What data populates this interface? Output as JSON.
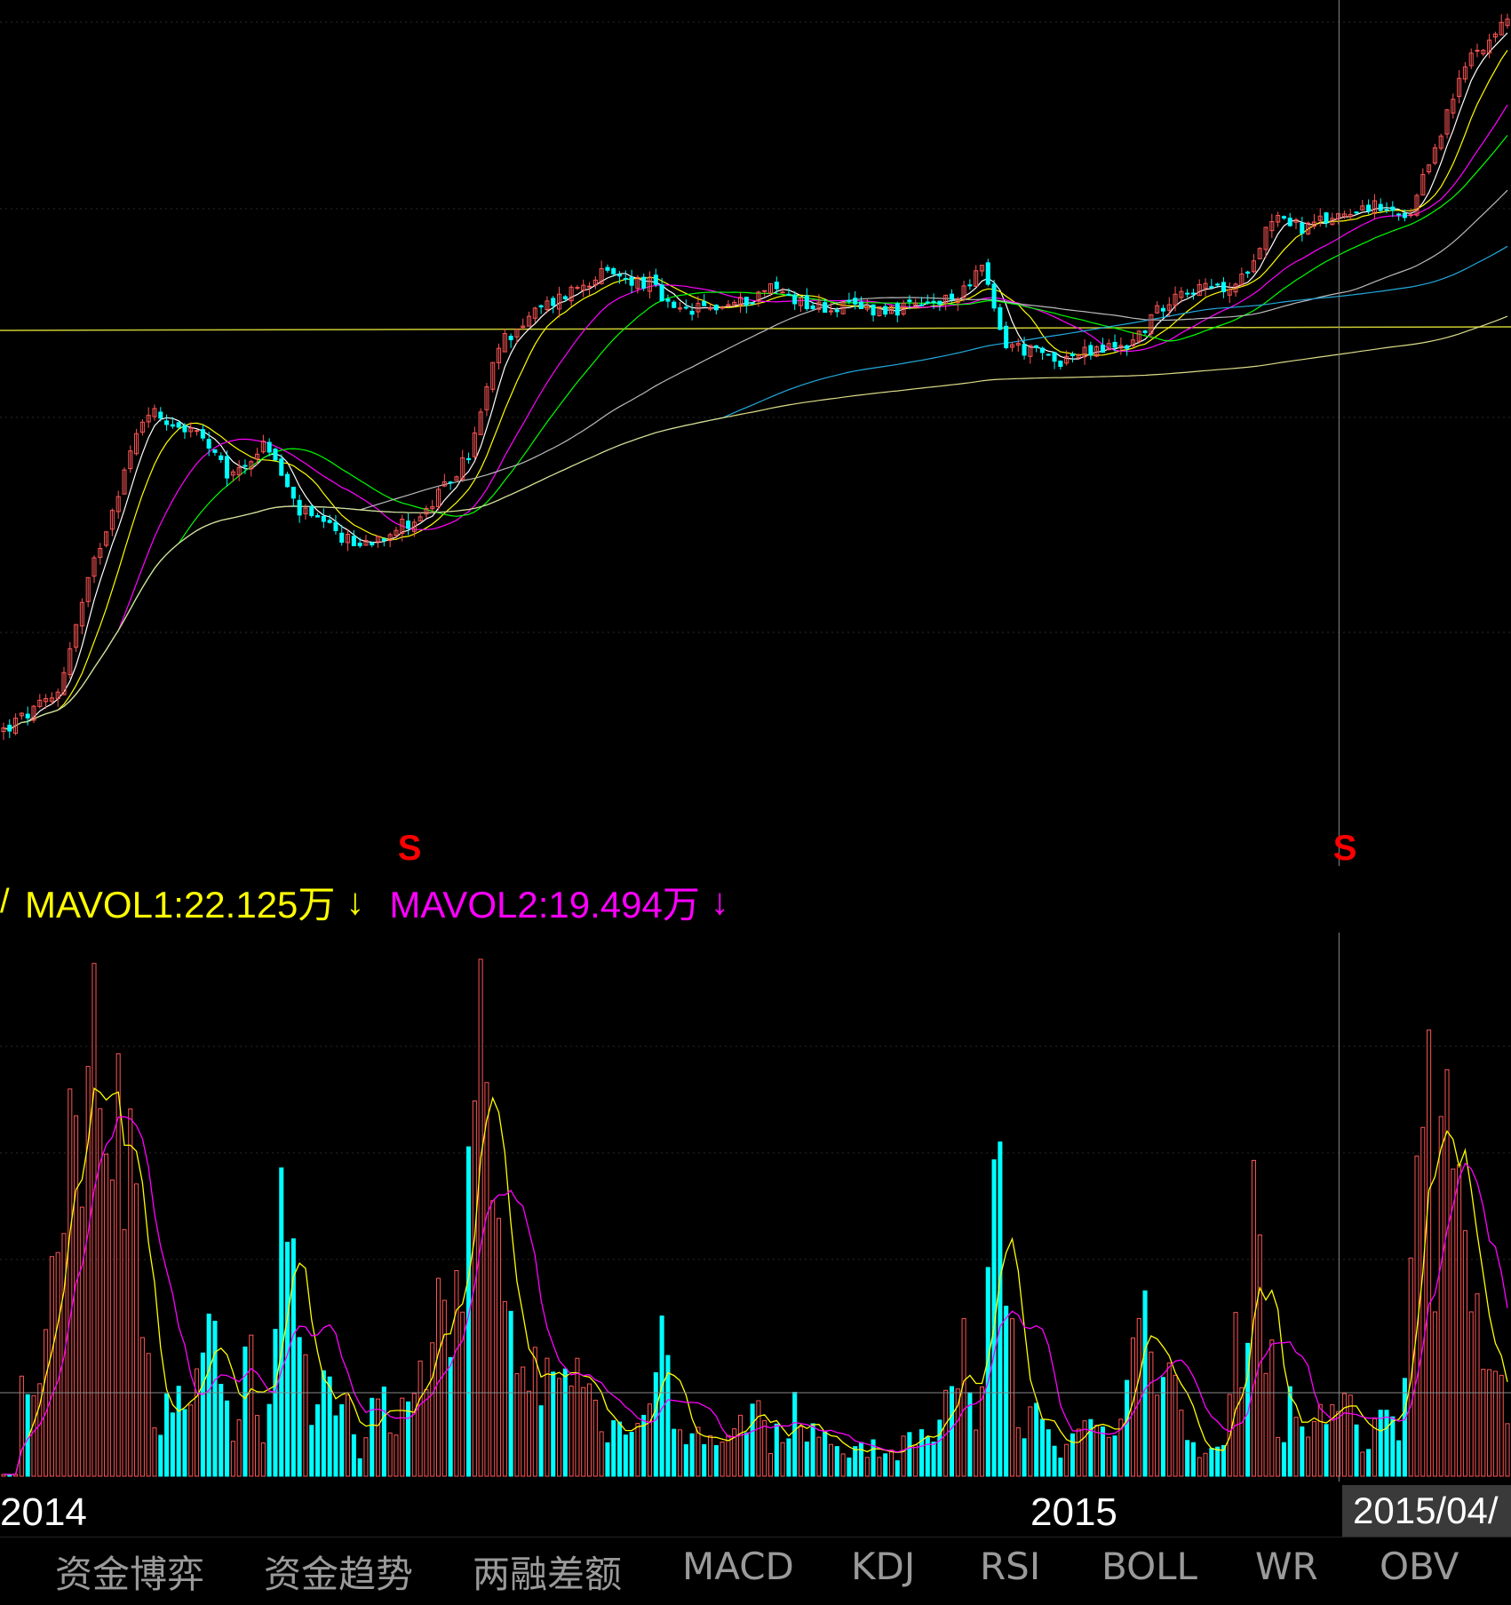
{
  "indicators": {
    "cut_prefix": "/",
    "mavol1_text": "MAVOL1:22.125万",
    "mavol2_text": "MAVOL2:19.494万",
    "down_arrow": "↓"
  },
  "year_labels": [
    "2014",
    "2015"
  ],
  "cursor_date": "2015/04/",
  "signal_marker": "S",
  "tabs": [
    "资金博弈",
    "资金趋势",
    "两融差额",
    "MACD",
    "KDJ",
    "RSI",
    "BOLL",
    "WR",
    "OBV"
  ],
  "colors": {
    "up": "#ff5555",
    "down": "#00ffff",
    "ma5": "#ffffff",
    "ma10": "#ffff00",
    "ma20": "#ff00ff",
    "ma30": "#00ff00",
    "ma60": "#bbbbbb",
    "ma120": "#22aadd",
    "ma250": "#dddd88",
    "mavol1": "#ffff00",
    "mavol2": "#ff00ff",
    "signal": "#ff0000"
  },
  "chart_data": {
    "type": "candlestick",
    "title": "",
    "period": "daily",
    "x_range": [
      "2013-10",
      "2015-04"
    ],
    "price_keypoints": [
      {
        "t": 0.0,
        "p": 2.0
      },
      {
        "t": 0.035,
        "p": 2.3
      },
      {
        "t": 0.06,
        "p": 4.0
      },
      {
        "t": 0.085,
        "p": 6.4
      },
      {
        "t": 0.095,
        "p": 7.6
      },
      {
        "t": 0.13,
        "p": 6.8
      },
      {
        "t": 0.15,
        "p": 5.7
      },
      {
        "t": 0.175,
        "p": 6.6
      },
      {
        "t": 0.195,
        "p": 5.0
      },
      {
        "t": 0.235,
        "p": 4.3
      },
      {
        "t": 0.28,
        "p": 4.9
      },
      {
        "t": 0.31,
        "p": 6.3
      },
      {
        "t": 0.33,
        "p": 10.0
      },
      {
        "t": 0.355,
        "p": 11.4
      },
      {
        "t": 0.395,
        "p": 13.3
      },
      {
        "t": 0.43,
        "p": 12.8
      },
      {
        "t": 0.445,
        "p": 11.3
      },
      {
        "t": 0.49,
        "p": 11.8
      },
      {
        "t": 0.51,
        "p": 12.6
      },
      {
        "t": 0.54,
        "p": 11.6
      },
      {
        "t": 0.6,
        "p": 11.5
      },
      {
        "t": 0.63,
        "p": 11.9
      },
      {
        "t": 0.65,
        "p": 13.7
      },
      {
        "t": 0.665,
        "p": 10.0
      },
      {
        "t": 0.7,
        "p": 9.3
      },
      {
        "t": 0.75,
        "p": 10.0
      },
      {
        "t": 0.78,
        "p": 12.5
      },
      {
        "t": 0.82,
        "p": 12.5
      },
      {
        "t": 0.845,
        "p": 17.2
      },
      {
        "t": 0.865,
        "p": 16.0
      },
      {
        "t": 0.905,
        "p": 17.8
      },
      {
        "t": 0.935,
        "p": 16.5
      },
      {
        "t": 0.95,
        "p": 22.0
      },
      {
        "t": 0.975,
        "p": 33.0
      },
      {
        "t": 1.0,
        "p": 38.0
      }
    ],
    "reference_price": 10.6,
    "moving_averages": [
      "MA5",
      "MA10",
      "MA20",
      "MA30",
      "MA60",
      "MA120",
      "MA250"
    ],
    "volume": {
      "unit": "万",
      "mavol1": 22.125,
      "mavol2": 19.494,
      "mavol1_period": "MAVOL1",
      "mavol2_period": "MAVOL2"
    },
    "signals": [
      {
        "label": "S",
        "t": 0.27
      },
      {
        "label": "S",
        "t": 0.892
      }
    ],
    "cursor_t": 0.888
  }
}
